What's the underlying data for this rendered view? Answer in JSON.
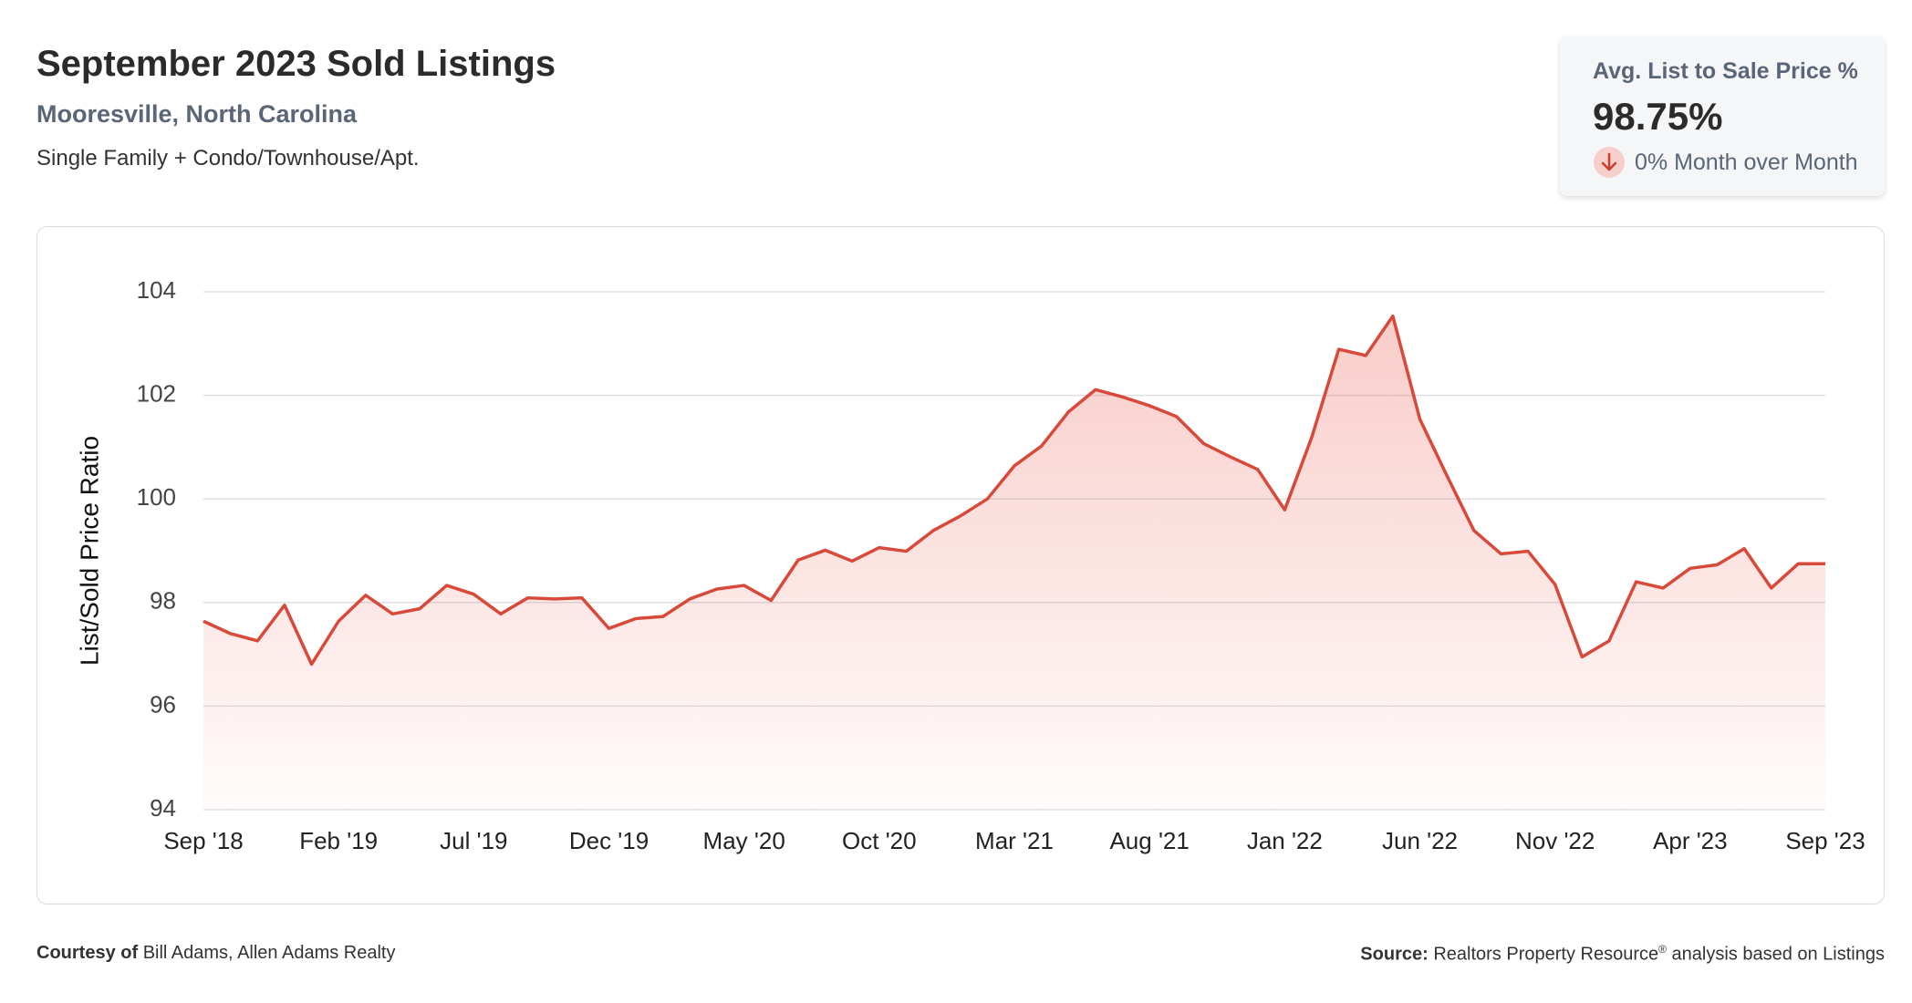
{
  "header": {
    "title": "September 2023 Sold Listings",
    "subtitle": "Mooresville, North Carolina",
    "note": "Single Family + Condo/Townhouse/Apt."
  },
  "kpi": {
    "label": "Avg. List to Sale Price %",
    "value": "98.75%",
    "change": "0% Month over Month"
  },
  "footer": {
    "courtesy_label": "Courtesy of",
    "courtesy": "Bill Adams, Allen Adams Realty",
    "source_label": "Source:",
    "source": "Realtors Property Resource",
    "source_mark": "®",
    "source_rest": "analysis based on Listings"
  },
  "chart_data": {
    "type": "line",
    "y_label": "List/Sold Price Ratio",
    "color": "#d9493a",
    "area": true,
    "grid": true,
    "categories": [
      "Sep '18",
      null,
      null,
      null,
      null,
      "Feb '19",
      null,
      null,
      null,
      null,
      "Jul '19",
      null,
      null,
      null,
      null,
      "Dec '19",
      null,
      null,
      null,
      null,
      "May '20",
      null,
      null,
      null,
      null,
      "Oct '20",
      null,
      null,
      null,
      null,
      "Mar '21",
      null,
      null,
      null,
      null,
      "Aug '21",
      null,
      null,
      null,
      null,
      "Jan '22",
      null,
      null,
      null,
      null,
      "Jun '22",
      null,
      null,
      null,
      null,
      "Nov '22",
      null,
      null,
      null,
      null,
      "Apr '23",
      null,
      null,
      null,
      null,
      "Sep '23"
    ],
    "values": [
      97.64,
      97.4,
      97.26,
      97.95,
      96.81,
      97.64,
      98.14,
      97.78,
      97.88,
      98.33,
      98.16,
      97.78,
      98.09,
      98.07,
      98.09,
      97.5,
      97.69,
      97.73,
      98.07,
      98.26,
      98.33,
      98.04,
      98.82,
      99.01,
      98.8,
      99.06,
      98.99,
      99.39,
      99.67,
      100.0,
      100.64,
      101.02,
      101.68,
      102.11,
      101.97,
      101.8,
      101.59,
      101.07,
      100.81,
      100.57,
      99.79,
      101.19,
      102.89,
      102.77,
      103.53,
      101.54,
      100.45,
      99.39,
      98.94,
      98.99,
      98.35,
      96.95,
      97.26,
      98.4,
      98.28,
      98.66,
      98.73,
      99.04,
      98.28,
      98.75,
      98.75
    ],
    "ylim": [
      94,
      104
    ],
    "yticks": [
      94,
      96,
      98,
      100,
      102,
      104
    ]
  }
}
